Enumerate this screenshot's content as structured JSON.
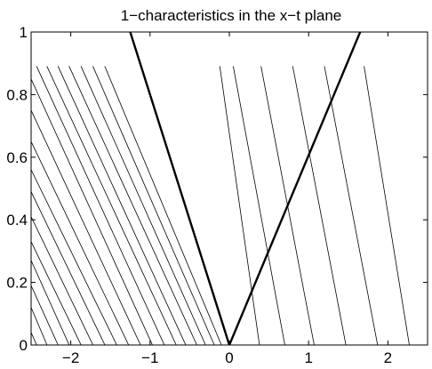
{
  "chart_data": {
    "type": "line",
    "title": "1−characteristics in the x−t plane",
    "xlabel": "",
    "ylabel": "",
    "xlim": [
      -2.5,
      2.5
    ],
    "ylim": [
      0,
      1
    ],
    "grid": false,
    "x_ticks": [
      {
        "value": -2,
        "label": "−2"
      },
      {
        "value": -1,
        "label": "−1"
      },
      {
        "value": 0,
        "label": "0"
      },
      {
        "value": 1,
        "label": "1"
      },
      {
        "value": 2,
        "label": "2"
      }
    ],
    "y_ticks": [
      {
        "value": 0,
        "label": "0"
      },
      {
        "value": 0.2,
        "label": "0.2"
      },
      {
        "value": 0.4,
        "label": "0.4"
      },
      {
        "value": 0.6,
        "label": "0.6"
      },
      {
        "value": 0.8,
        "label": "0.8"
      },
      {
        "value": 1,
        "label": "1"
      }
    ],
    "series": [
      {
        "style": "thick",
        "x": [
          0,
          -1.25
        ],
        "y": [
          0,
          1
        ]
      },
      {
        "style": "thick",
        "x": [
          0,
          1.65
        ],
        "y": [
          0,
          1
        ]
      },
      {
        "style": "thin",
        "x": [
          -0.1,
          -1.57
        ],
        "y": [
          0,
          0.89
        ]
      },
      {
        "style": "thin",
        "x": [
          -0.19,
          -1.72
        ],
        "y": [
          0,
          0.89
        ]
      },
      {
        "style": "thin",
        "x": [
          -0.3,
          -1.87
        ],
        "y": [
          0,
          0.89
        ]
      },
      {
        "style": "thin",
        "x": [
          -0.41,
          -2.02
        ],
        "y": [
          0,
          0.89
        ]
      },
      {
        "style": "thin",
        "x": [
          -0.55,
          -2.16
        ],
        "y": [
          0,
          0.89
        ]
      },
      {
        "style": "thin",
        "x": [
          -0.67,
          -2.3
        ],
        "y": [
          0,
          0.89
        ]
      },
      {
        "style": "thin",
        "x": [
          -0.82,
          -2.43
        ],
        "y": [
          0,
          0.89
        ]
      },
      {
        "style": "thin",
        "x": [
          -0.97,
          -2.5
        ],
        "y": [
          0,
          0.85
        ]
      },
      {
        "style": "thin",
        "x": [
          -1.12,
          -2.5
        ],
        "y": [
          0,
          0.75
        ]
      },
      {
        "style": "thin",
        "x": [
          -1.27,
          -2.5
        ],
        "y": [
          0,
          0.65
        ]
      },
      {
        "style": "thin",
        "x": [
          -1.42,
          -2.5
        ],
        "y": [
          0,
          0.56
        ]
      },
      {
        "style": "thin",
        "x": [
          -1.57,
          -2.5
        ],
        "y": [
          0,
          0.49
        ]
      },
      {
        "style": "thin",
        "x": [
          -1.72,
          -2.5
        ],
        "y": [
          0,
          0.41
        ]
      },
      {
        "style": "thin",
        "x": [
          -1.87,
          -2.5
        ],
        "y": [
          0,
          0.33
        ]
      },
      {
        "style": "thin",
        "x": [
          -2.02,
          -2.5
        ],
        "y": [
          0,
          0.27
        ]
      },
      {
        "style": "thin",
        "x": [
          -2.16,
          -2.5
        ],
        "y": [
          0,
          0.19
        ]
      },
      {
        "style": "thin",
        "x": [
          -2.3,
          -2.5
        ],
        "y": [
          0,
          0.12
        ]
      },
      {
        "style": "thin",
        "x": [
          -2.43,
          -2.5
        ],
        "y": [
          0,
          0.04
        ]
      },
      {
        "style": "thin",
        "x": [
          0.38,
          -0.12
        ],
        "y": [
          0,
          0.89
        ]
      },
      {
        "style": "thin",
        "x": [
          0.7,
          0.05
        ],
        "y": [
          0,
          0.89
        ]
      },
      {
        "style": "thin",
        "x": [
          1.07,
          0.4
        ],
        "y": [
          0,
          0.89
        ]
      },
      {
        "style": "thin",
        "x": [
          1.47,
          0.8
        ],
        "y": [
          0,
          0.89
        ]
      },
      {
        "style": "thin",
        "x": [
          1.87,
          1.2
        ],
        "y": [
          0,
          0.89
        ]
      },
      {
        "style": "thin",
        "x": [
          2.27,
          1.7
        ],
        "y": [
          0,
          0.89
        ]
      }
    ]
  }
}
